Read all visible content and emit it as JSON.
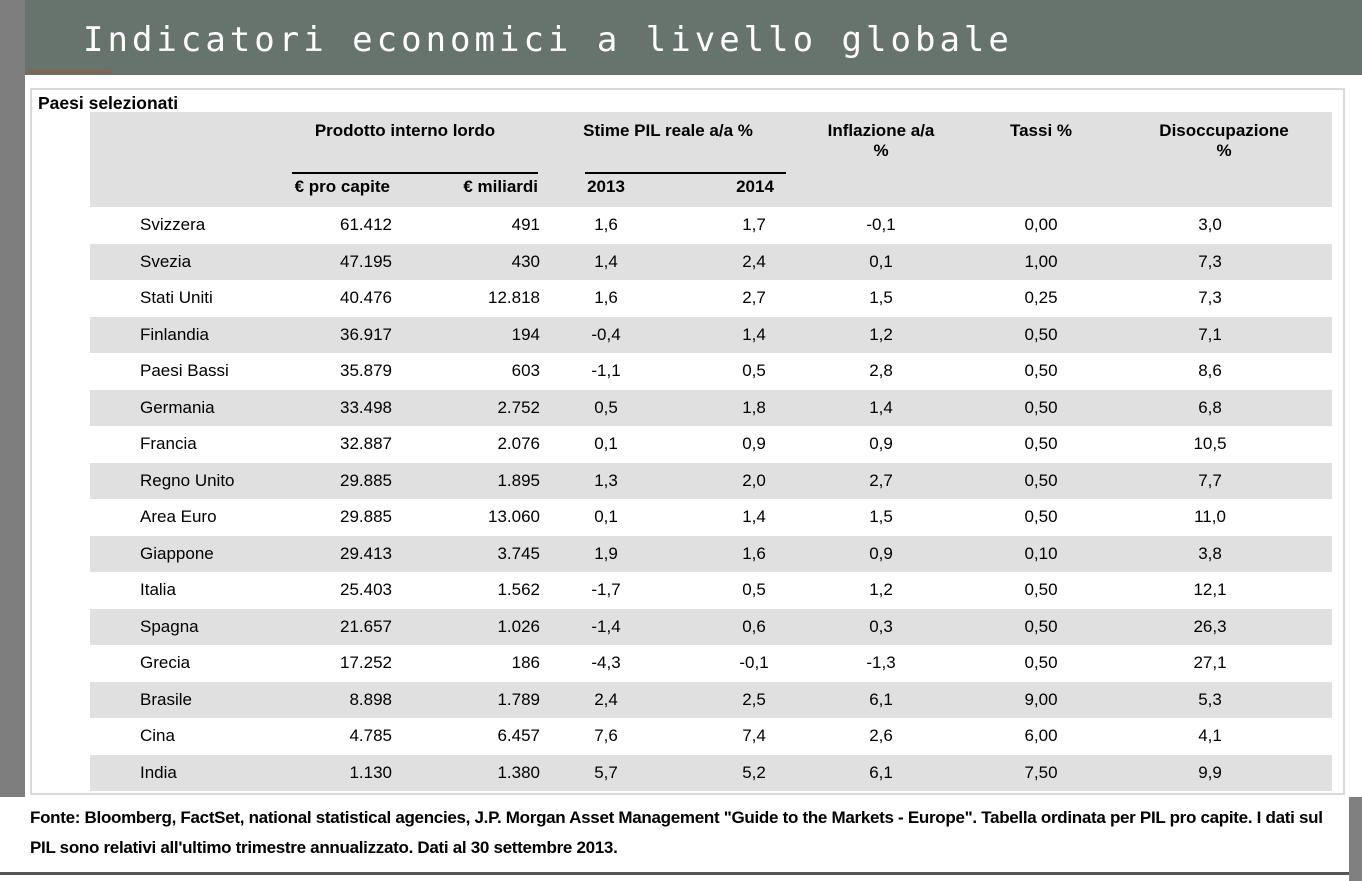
{
  "slide": {
    "title": "Indicatori economici a livello globale"
  },
  "panel": {
    "section_title": "Paesi selezionati"
  },
  "table": {
    "groups": {
      "gdp": "Prodotto interno lordo",
      "estimates": "Stime PIL reale a/a %"
    },
    "columns": {
      "country": "",
      "gdp_per_capita": "€ pro capite",
      "gdp_billions": "€ miliardi",
      "est_2013": "2013",
      "est_2014": "2014",
      "inflation": "Inflazione a/a\n%",
      "rates": "Tassi %",
      "unemployment": "Disoccupazione\n%"
    },
    "rows": [
      {
        "country": "Svizzera",
        "gdp_per_capita": "61.412",
        "gdp_billions": "491",
        "est_2013": "1,6",
        "est_2014": "1,7",
        "inflation": "-0,1",
        "rates": "0,00",
        "unemployment": "3,0"
      },
      {
        "country": "Svezia",
        "gdp_per_capita": "47.195",
        "gdp_billions": "430",
        "est_2013": "1,4",
        "est_2014": "2,4",
        "inflation": "0,1",
        "rates": "1,00",
        "unemployment": "7,3"
      },
      {
        "country": "Stati Uniti",
        "gdp_per_capita": "40.476",
        "gdp_billions": "12.818",
        "est_2013": "1,6",
        "est_2014": "2,7",
        "inflation": "1,5",
        "rates": "0,25",
        "unemployment": "7,3"
      },
      {
        "country": "Finlandia",
        "gdp_per_capita": "36.917",
        "gdp_billions": "194",
        "est_2013": "-0,4",
        "est_2014": "1,4",
        "inflation": "1,2",
        "rates": "0,50",
        "unemployment": "7,1"
      },
      {
        "country": "Paesi Bassi",
        "gdp_per_capita": "35.879",
        "gdp_billions": "603",
        "est_2013": "-1,1",
        "est_2014": "0,5",
        "inflation": "2,8",
        "rates": "0,50",
        "unemployment": "8,6"
      },
      {
        "country": "Germania",
        "gdp_per_capita": "33.498",
        "gdp_billions": "2.752",
        "est_2013": "0,5",
        "est_2014": "1,8",
        "inflation": "1,4",
        "rates": "0,50",
        "unemployment": "6,8"
      },
      {
        "country": "Francia",
        "gdp_per_capita": "32.887",
        "gdp_billions": "2.076",
        "est_2013": "0,1",
        "est_2014": "0,9",
        "inflation": "0,9",
        "rates": "0,50",
        "unemployment": "10,5"
      },
      {
        "country": "Regno Unito",
        "gdp_per_capita": "29.885",
        "gdp_billions": "1.895",
        "est_2013": "1,3",
        "est_2014": "2,0",
        "inflation": "2,7",
        "rates": "0,50",
        "unemployment": "7,7"
      },
      {
        "country": "Area Euro",
        "gdp_per_capita": "29.885",
        "gdp_billions": "13.060",
        "est_2013": "0,1",
        "est_2014": "1,4",
        "inflation": "1,5",
        "rates": "0,50",
        "unemployment": "11,0"
      },
      {
        "country": "Giappone",
        "gdp_per_capita": "29.413",
        "gdp_billions": "3.745",
        "est_2013": "1,9",
        "est_2014": "1,6",
        "inflation": "0,9",
        "rates": "0,10",
        "unemployment": "3,8"
      },
      {
        "country": "Italia",
        "gdp_per_capita": "25.403",
        "gdp_billions": "1.562",
        "est_2013": "-1,7",
        "est_2014": "0,5",
        "inflation": "1,2",
        "rates": "0,50",
        "unemployment": "12,1"
      },
      {
        "country": "Spagna",
        "gdp_per_capita": "21.657",
        "gdp_billions": "1.026",
        "est_2013": "-1,4",
        "est_2014": "0,6",
        "inflation": "0,3",
        "rates": "0,50",
        "unemployment": "26,3"
      },
      {
        "country": "Grecia",
        "gdp_per_capita": "17.252",
        "gdp_billions": "186",
        "est_2013": "-4,3",
        "est_2014": "-0,1",
        "inflation": "-1,3",
        "rates": "0,50",
        "unemployment": "27,1"
      },
      {
        "country": "Brasile",
        "gdp_per_capita": "8.898",
        "gdp_billions": "1.789",
        "est_2013": "2,4",
        "est_2014": "2,5",
        "inflation": "6,1",
        "rates": "9,00",
        "unemployment": "5,3"
      },
      {
        "country": "Cina",
        "gdp_per_capita": "4.785",
        "gdp_billions": "6.457",
        "est_2013": "7,6",
        "est_2014": "7,4",
        "inflation": "2,6",
        "rates": "6,00",
        "unemployment": "4,1"
      },
      {
        "country": "India",
        "gdp_per_capita": "1.130",
        "gdp_billions": "1.380",
        "est_2013": "5,7",
        "est_2014": "5,2",
        "inflation": "6,1",
        "rates": "7,50",
        "unemployment": "9,9"
      }
    ]
  },
  "footer": {
    "line1": "Fonte: Bloomberg, FactSet, national statistical agencies, J.P. Morgan Asset Management \"Guide to the Markets - Europe\". Tabella ordinata per PIL pro capite. I dati sul",
    "line2": "PIL sono relativi all'ultimo trimestre annualizzato. Dati al 30 settembre 2013."
  },
  "colors": {
    "band": "#67736D",
    "side_strip": "#7E7E7E",
    "accent_underline": "#7B685C",
    "row_stripe": "#E0E0E0",
    "panel_border": "#D9D9D9",
    "footer_rule": "#555555",
    "corner_block": "#808080"
  }
}
